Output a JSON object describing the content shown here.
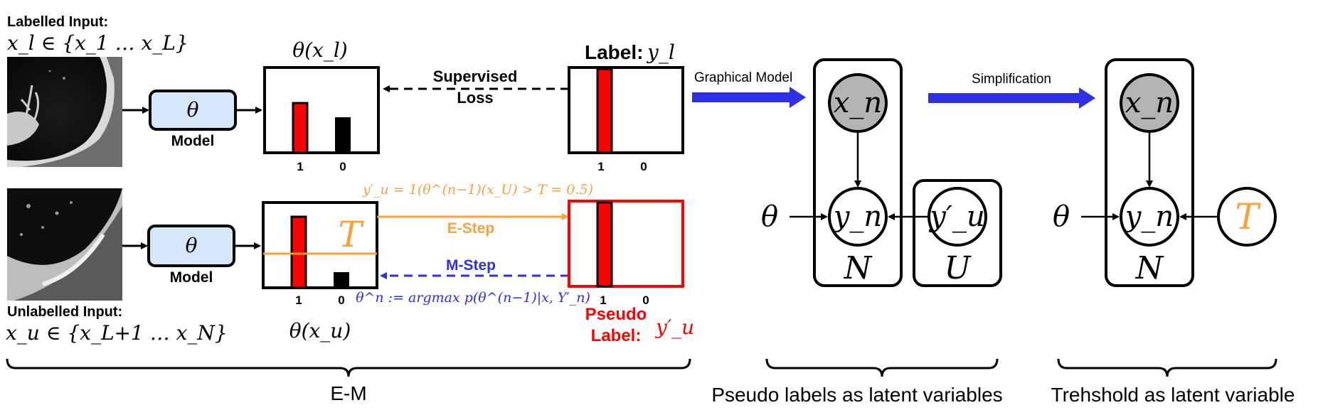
{
  "labelled_input": {
    "title": "Labelled Input:",
    "set": "x_l ∈ {x_1 … x_L}"
  },
  "unlabelled_input": {
    "title": "Unlabelled Input:",
    "set": "x_u ∈ {x_L+1 … x_N}"
  },
  "model": {
    "symbol": "θ",
    "label": "Model"
  },
  "labelled_output": {
    "title": "θ(x_l)",
    "tick_1": "1",
    "tick_0": "0"
  },
  "unlabelled_output": {
    "title": "θ(x_u)",
    "threshold_symbol": "T",
    "tick_1": "1",
    "tick_0": "0"
  },
  "true_label": {
    "title": "Label:",
    "symbol": "y_l",
    "tick_1": "1",
    "tick_0": "0"
  },
  "pseudo_label": {
    "line1": "Pseudo",
    "line2": "Label:",
    "symbol": "y′_u",
    "tick_1": "1",
    "tick_0": "0"
  },
  "supervised_loss": {
    "line1": "Supervised",
    "line2": "Loss"
  },
  "e_step": {
    "label": "E-Step",
    "formula": "y′_u = 1(θ^(n−1)(x_U) > T = 0.5)"
  },
  "m_step": {
    "label": "M-Step",
    "formula": "θ^n := argmax p(θ^(n−1)|x, Y′_n)"
  },
  "graph1": {
    "arrow_label": "Graphical Model",
    "theta": "θ",
    "node_x": "x_n",
    "node_y": "y_n",
    "node_u": "y′_u",
    "plate_N": "N",
    "plate_U": "U"
  },
  "graph2": {
    "arrow_label": "Simplification",
    "theta": "θ",
    "node_x": "x_n",
    "node_y": "y_n",
    "node_T": "T",
    "plate_N": "N"
  },
  "captions": {
    "em": "E-M",
    "pseudo": "Pseudo labels as latent variables",
    "threshold": "Trehshold as latent variable"
  },
  "colors": {
    "red": "#ff0000",
    "orange": "#f7a23d",
    "blue": "#2f2fe6",
    "model_fill": "#d6e6fb",
    "node_grey": "#b3b3b3"
  }
}
